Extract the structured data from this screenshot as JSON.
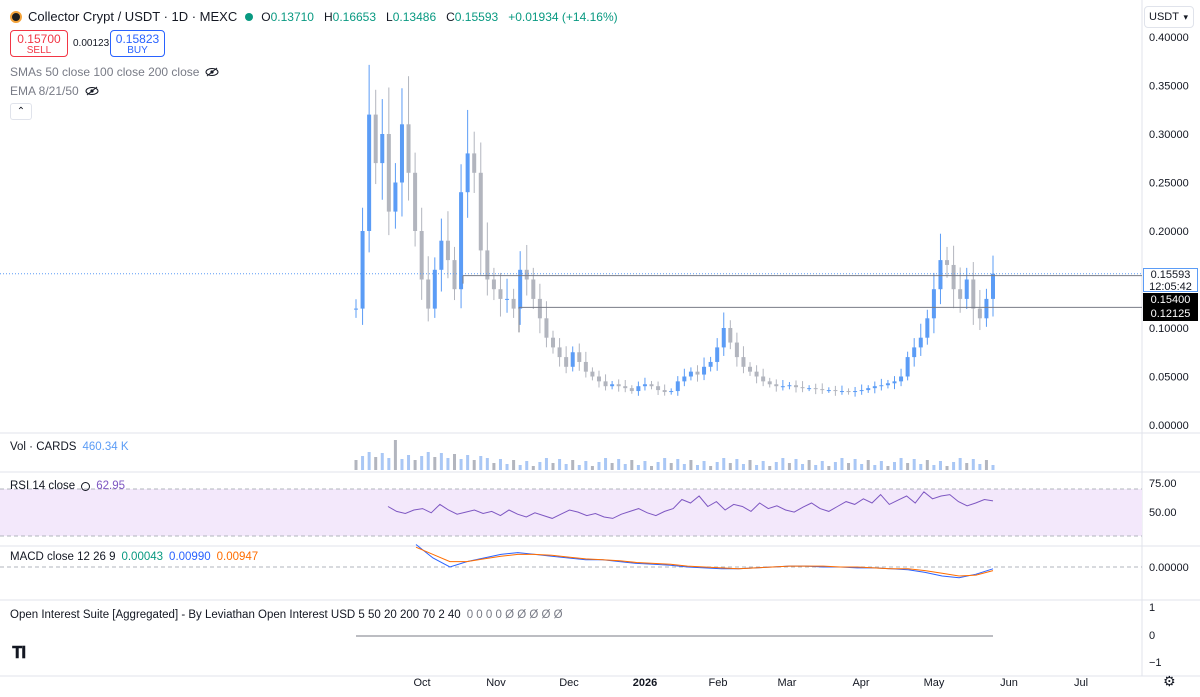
{
  "header": {
    "symbol": "Collector Crypt / USDT · 1D · MEXC",
    "open_label": "O",
    "open": "0.13710",
    "high_label": "H",
    "high": "0.16653",
    "low_label": "L",
    "low": "0.13486",
    "close_label": "C",
    "close": "0.15593",
    "change": "+0.01934 (+14.16%)",
    "status_color": "#089981"
  },
  "trade": {
    "sell_price": "0.15700",
    "sell_label": "SELL",
    "spread": "0.00123",
    "buy_price": "0.15823",
    "buy_label": "BUY"
  },
  "indicators": {
    "sma_label": "SMAs 50 close 100 close 200 close",
    "ema_label": "EMA 8/21/50",
    "collapse_icon": "chevron-up-icon"
  },
  "currency_button": "USDT",
  "panes": {
    "volume": {
      "title": "Vol · CARDS",
      "value": "460.34 K"
    },
    "rsi": {
      "title": "RSI 14 close",
      "value": "62.95",
      "ticks": [
        "75.00",
        "50.00"
      ]
    },
    "macd": {
      "title": "MACD close 12 26 9",
      "v1": "0.00043",
      "v2": "0.00990",
      "v3": "0.00947",
      "ticks": [
        "0.00000"
      ]
    },
    "oi": {
      "title": "Open Interest Suite [Aggregated] - By Leviathan Open Interest USD 5 50 20 200 70 2 40",
      "values": "0 0 0 0 Ø Ø Ø Ø Ø",
      "ticks": [
        "1",
        "0",
        "−1"
      ]
    }
  },
  "price_tags": {
    "last": "0.15593",
    "countdown": "12:05:42",
    "level1": "0.15400",
    "level2": "0.12125"
  },
  "colors": {
    "up": "#5b9cf6",
    "down": "#b2b5be",
    "rsi_line": "#7e57c2",
    "rsi_fill": "#f3e8fb",
    "macd": "#2962ff",
    "signal": "#ff6d00",
    "last_price_bg": "#ffffff",
    "level_bg": "#000000"
  },
  "chart_data": {
    "type": "candlestick",
    "y_ticks": [
      "0.40000",
      "0.35000",
      "0.30000",
      "0.25000",
      "0.20000",
      "0.15000",
      "0.10000",
      "0.05000",
      "0.00000"
    ],
    "ylim": [
      0,
      0.4
    ],
    "x_ticks": [
      "Oct",
      "Nov",
      "Dec",
      "2026",
      "Feb",
      "Mar",
      "Apr",
      "May",
      "Jun",
      "Jul"
    ],
    "close_path": [
      0.12,
      0.2,
      0.32,
      0.27,
      0.3,
      0.22,
      0.25,
      0.31,
      0.26,
      0.2,
      0.15,
      0.12,
      0.16,
      0.19,
      0.17,
      0.14,
      0.24,
      0.28,
      0.26,
      0.18,
      0.15,
      0.14,
      0.13,
      0.13,
      0.12,
      0.16,
      0.15,
      0.13,
      0.11,
      0.09,
      0.08,
      0.07,
      0.06,
      0.075,
      0.065,
      0.055,
      0.05,
      0.045,
      0.04,
      0.042,
      0.04,
      0.038,
      0.035,
      0.04,
      0.042,
      0.04,
      0.036,
      0.034,
      0.035,
      0.045,
      0.05,
      0.055,
      0.052,
      0.06,
      0.065,
      0.08,
      0.1,
      0.085,
      0.07,
      0.06,
      0.055,
      0.05,
      0.045,
      0.042,
      0.04,
      0.04,
      0.041,
      0.039,
      0.038,
      0.038,
      0.037,
      0.036,
      0.036,
      0.035,
      0.035,
      0.034,
      0.035,
      0.036,
      0.038,
      0.04,
      0.041,
      0.043,
      0.045,
      0.05,
      0.07,
      0.08,
      0.09,
      0.11,
      0.14,
      0.17,
      0.165,
      0.14,
      0.13,
      0.15,
      0.12,
      0.11,
      0.13,
      0.15593
    ],
    "horizontal_levels": [
      0.154,
      0.12125
    ],
    "last_price": 0.15593
  }
}
